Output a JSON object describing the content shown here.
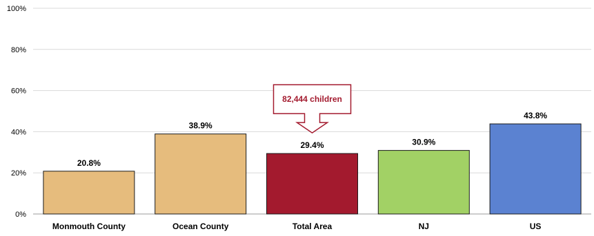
{
  "chart_data": {
    "type": "bar",
    "categories": [
      "Monmouth County",
      "Ocean County",
      "Total Area",
      "NJ",
      "US"
    ],
    "values": [
      20.8,
      38.9,
      29.4,
      30.9,
      43.8
    ],
    "data_labels": [
      "20.8%",
      "38.9%",
      "29.4%",
      "30.9%",
      "43.8%"
    ],
    "bar_colors": [
      "#e6bc7d",
      "#e6bc7d",
      "#a31a2e",
      "#a2d165",
      "#5b82d1"
    ],
    "ylim": [
      0,
      100
    ],
    "y_ticks": [
      0,
      20,
      40,
      60,
      80,
      100
    ],
    "y_tick_labels": [
      "0%",
      "20%",
      "40%",
      "60%",
      "80%",
      "100%"
    ],
    "grid": true,
    "annotation": {
      "text": "82,444 children",
      "category": "Total Area",
      "color": "#a31a2e"
    }
  }
}
